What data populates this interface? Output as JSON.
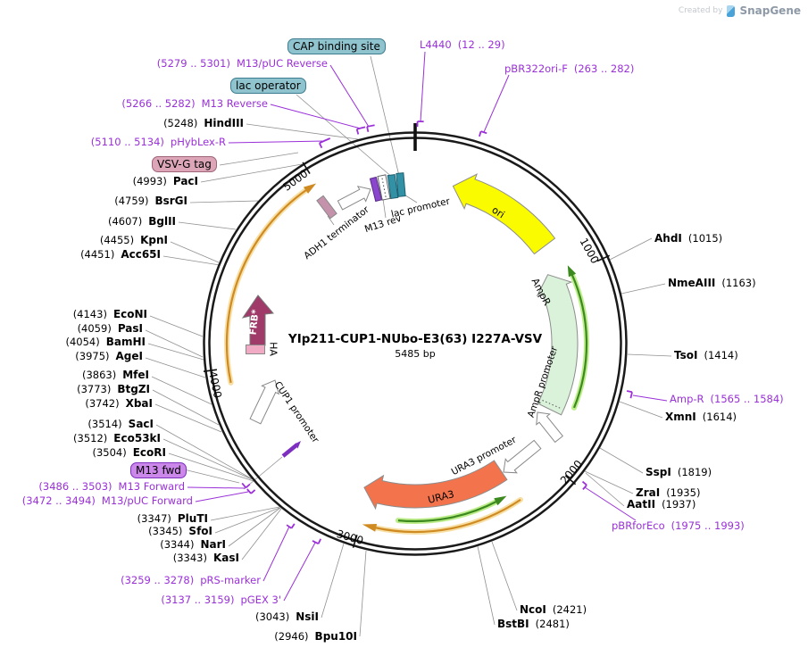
{
  "watermark": {
    "prefix": "Created by",
    "brand": "SnapGene"
  },
  "plasmid": {
    "name": "YIp211-CUP1-NUbo-E3(63) I227A-VSV",
    "size_label": "5485 bp"
  },
  "ticks": [
    "1000",
    "2000",
    "3000",
    "4000",
    "5000"
  ],
  "features": {
    "ori": "ori",
    "ampr": "AmpR",
    "ampr_promoter": "AmpR promoter",
    "ura3": "URA3",
    "ura3_promoter": "URA3 promoter",
    "cup1_promoter": "CUP1 promoter",
    "frb": "FRB*",
    "ha": "HA",
    "adh1_terminator": "ADH1 terminator",
    "m13_rev": "M13 rev",
    "lac_promoter": "lac promoter",
    "cap_binding_site": "CAP binding site",
    "lac_operator": "lac operator",
    "vsv_g_tag": "VSV-G tag",
    "m13_fwd": "M13 fwd"
  },
  "colors": {
    "primer_purple": "#9a30d8",
    "ori_yellow": "#fbfb00",
    "ampr_green": "#d9f2d9",
    "ura3_coral": "#f3744c",
    "frb_magenta": "#a03a68",
    "teal_box": "#8fc3ce",
    "backbone": "#1a1a1a"
  },
  "enzymes": [
    {
      "name": "HindIII",
      "pos_label": "(5248)"
    },
    {
      "name": "PacI",
      "pos_label": "(4993)"
    },
    {
      "name": "BsrGI",
      "pos_label": "(4759)"
    },
    {
      "name": "BglII",
      "pos_label": "(4607)"
    },
    {
      "name": "KpnI",
      "pos_label": "(4455)"
    },
    {
      "name": "Acc65I",
      "pos_label": "(4451)"
    },
    {
      "name": "EcoNI",
      "pos_label": "(4143)"
    },
    {
      "name": "PasI",
      "pos_label": "(4059)"
    },
    {
      "name": "BamHI",
      "pos_label": "(4054)"
    },
    {
      "name": "AgeI",
      "pos_label": "(3975)"
    },
    {
      "name": "MfeI",
      "pos_label": "(3863)"
    },
    {
      "name": "BtgZI",
      "pos_label": "(3773)"
    },
    {
      "name": "XbaI",
      "pos_label": "(3742)"
    },
    {
      "name": "SacI",
      "pos_label": "(3514)"
    },
    {
      "name": "Eco53kI",
      "pos_label": "(3512)"
    },
    {
      "name": "EcoRI",
      "pos_label": "(3504)"
    },
    {
      "name": "PluTI",
      "pos_label": "(3347)"
    },
    {
      "name": "SfoI",
      "pos_label": "(3345)"
    },
    {
      "name": "NarI",
      "pos_label": "(3344)"
    },
    {
      "name": "KasI",
      "pos_label": "(3343)"
    },
    {
      "name": "NsiI",
      "pos_label": "(3043)"
    },
    {
      "name": "Bpu10I",
      "pos_label": "(2946)"
    },
    {
      "name": "AhdI",
      "pos_label": "(1015)"
    },
    {
      "name": "NmeAIII",
      "pos_label": "(1163)"
    },
    {
      "name": "TsoI",
      "pos_label": "(1414)"
    },
    {
      "name": "XmnI",
      "pos_label": "(1614)"
    },
    {
      "name": "SspI",
      "pos_label": "(1819)"
    },
    {
      "name": "ZraI",
      "pos_label": "(1935)"
    },
    {
      "name": "AatII",
      "pos_label": "(1937)"
    },
    {
      "name": "NcoI",
      "pos_label": "(2421)"
    },
    {
      "name": "BstBI",
      "pos_label": "(2481)"
    }
  ],
  "primers": [
    {
      "name": "M13/pUC Reverse",
      "range_label": "(5279 .. 5301)"
    },
    {
      "name": "M13 Reverse",
      "range_label": "(5266 .. 5282)"
    },
    {
      "name": "pHybLex-R",
      "range_label": "(5110 .. 5134)"
    },
    {
      "name": "M13 Forward",
      "range_label": "(3486 .. 3503)"
    },
    {
      "name": "M13/pUC Forward",
      "range_label": "(3472 .. 3494)"
    },
    {
      "name": "pRS-marker",
      "range_label": "(3259 .. 3278)"
    },
    {
      "name": "pGEX 3'",
      "range_label": "(3137 .. 3159)"
    },
    {
      "name": "L4440",
      "range_label": "(12 .. 29)"
    },
    {
      "name": "pBR322ori-F",
      "range_label": "(263 .. 282)"
    },
    {
      "name": "Amp-R",
      "range_label": "(1565 .. 1584)"
    },
    {
      "name": "pBRforEco",
      "range_label": "(1975 .. 1993)"
    }
  ]
}
